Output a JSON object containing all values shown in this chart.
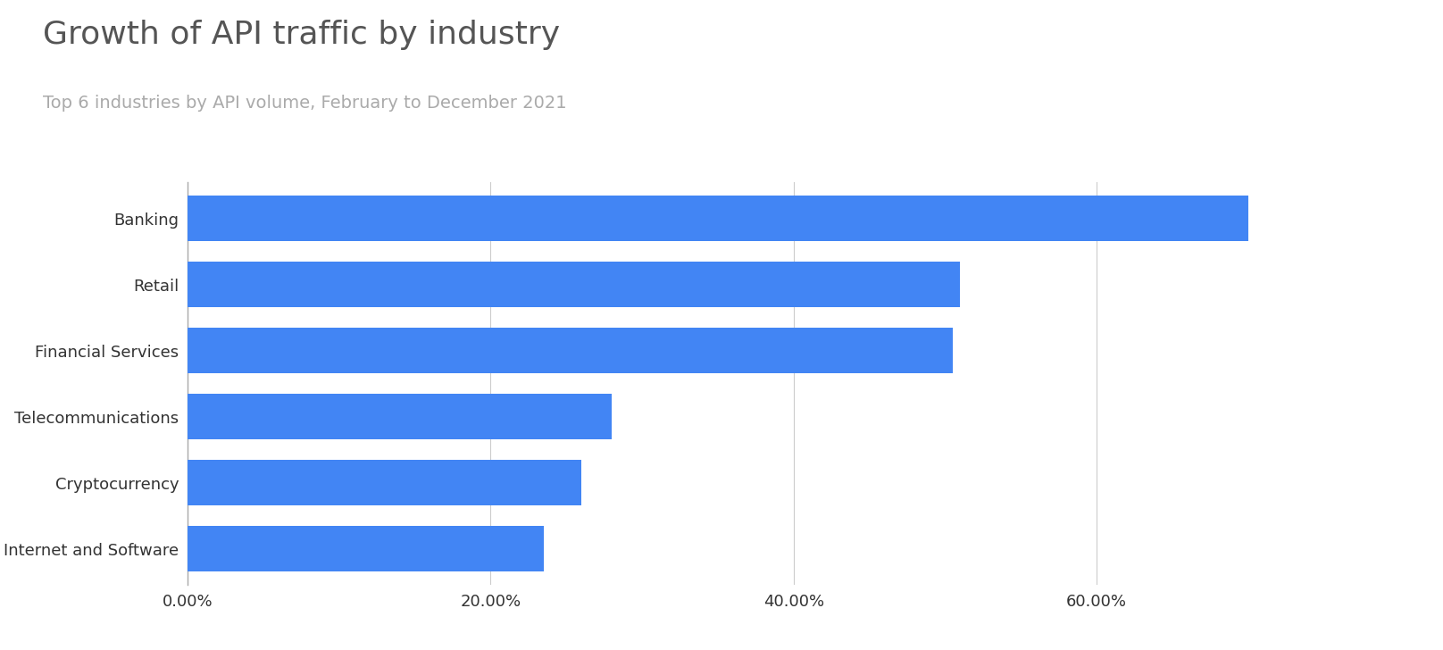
{
  "title": "Growth of API traffic by industry",
  "subtitle": "Top 6 industries by API volume, February to December 2021",
  "categories": [
    "Banking",
    "Retail",
    "Financial Services",
    "Telecommunications",
    "Cryptocurrency",
    "Internet and Software"
  ],
  "values": [
    0.7,
    0.51,
    0.505,
    0.28,
    0.26,
    0.235
  ],
  "bar_color": "#4285F4",
  "background_color": "#ffffff",
  "title_fontsize": 26,
  "subtitle_fontsize": 14,
  "title_color": "#555555",
  "subtitle_color": "#aaaaaa",
  "tick_label_color": "#333333",
  "xlim": [
    0,
    0.8
  ],
  "xticks": [
    0.0,
    0.2,
    0.4,
    0.6
  ],
  "xtick_labels": [
    "0.00%",
    "20.00%",
    "40.00%",
    "60.00%"
  ],
  "grid_color": "#cccccc",
  "bar_height": 0.68
}
